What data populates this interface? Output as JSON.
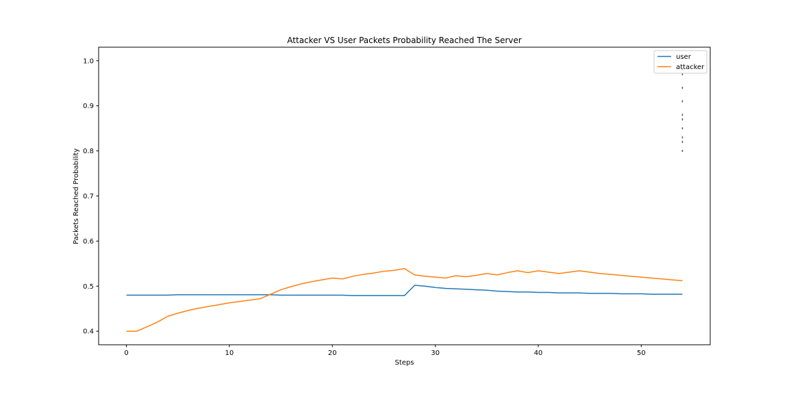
{
  "chart_data": {
    "type": "line",
    "title": "Attacker VS User Packets Probability Reached The Server",
    "xlabel": "Steps",
    "ylabel": "Packets Reached Probability",
    "xlim": [
      -2.7,
      56.7
    ],
    "ylim": [
      0.37,
      1.03
    ],
    "xticks": [
      0,
      10,
      20,
      30,
      40,
      50
    ],
    "yticks": [
      0.4,
      0.5,
      0.6,
      0.7,
      0.8,
      0.9,
      1.0
    ],
    "ytick_labels": [
      "0.4",
      "0.5",
      "0.6",
      "0.7",
      "0.8",
      "0.9",
      "1.0"
    ],
    "grid": false,
    "legend_position": "top-right",
    "series": [
      {
        "name": "user",
        "color": "#1f77b4",
        "x": [
          0,
          1,
          2,
          3,
          4,
          5,
          6,
          7,
          8,
          9,
          10,
          11,
          12,
          13,
          14,
          15,
          16,
          17,
          18,
          19,
          20,
          21,
          22,
          23,
          24,
          25,
          26,
          27,
          28,
          29,
          30,
          31,
          32,
          33,
          34,
          35,
          36,
          37,
          38,
          39,
          40,
          41,
          42,
          43,
          44,
          45,
          46,
          47,
          48,
          49,
          50,
          51,
          52,
          53,
          54
        ],
        "values": [
          0.48,
          0.48,
          0.48,
          0.48,
          0.48,
          0.481,
          0.481,
          0.481,
          0.481,
          0.481,
          0.481,
          0.481,
          0.481,
          0.481,
          0.481,
          0.48,
          0.48,
          0.48,
          0.48,
          0.48,
          0.48,
          0.48,
          0.479,
          0.479,
          0.479,
          0.479,
          0.479,
          0.479,
          0.502,
          0.5,
          0.497,
          0.495,
          0.494,
          0.493,
          0.492,
          0.491,
          0.489,
          0.488,
          0.487,
          0.487,
          0.486,
          0.486,
          0.485,
          0.485,
          0.485,
          0.484,
          0.484,
          0.484,
          0.483,
          0.483,
          0.483,
          0.482,
          0.482,
          0.482,
          0.482
        ]
      },
      {
        "name": "attacker",
        "color": "#ff7f0e",
        "x": [
          0,
          1,
          2,
          3,
          4,
          5,
          6,
          7,
          8,
          9,
          10,
          11,
          12,
          13,
          14,
          15,
          16,
          17,
          18,
          19,
          20,
          21,
          22,
          23,
          24,
          25,
          26,
          27,
          28,
          29,
          30,
          31,
          32,
          33,
          34,
          35,
          36,
          37,
          38,
          39,
          40,
          41,
          42,
          43,
          44,
          45,
          46,
          47,
          48,
          49,
          50,
          51,
          52,
          53,
          54
        ],
        "values": [
          0.4,
          0.4,
          0.41,
          0.42,
          0.433,
          0.44,
          0.446,
          0.451,
          0.455,
          0.459,
          0.463,
          0.466,
          0.469,
          0.472,
          0.482,
          0.492,
          0.499,
          0.505,
          0.51,
          0.514,
          0.518,
          0.516,
          0.522,
          0.526,
          0.529,
          0.533,
          0.535,
          0.539,
          0.525,
          0.522,
          0.52,
          0.518,
          0.523,
          0.521,
          0.524,
          0.528,
          0.525,
          0.53,
          0.534,
          0.53,
          0.534,
          0.531,
          0.528,
          0.531,
          0.534,
          0.531,
          0.528,
          0.526,
          0.524,
          0.522,
          0.52,
          0.518,
          0.516,
          0.514,
          0.512
        ]
      }
    ]
  }
}
